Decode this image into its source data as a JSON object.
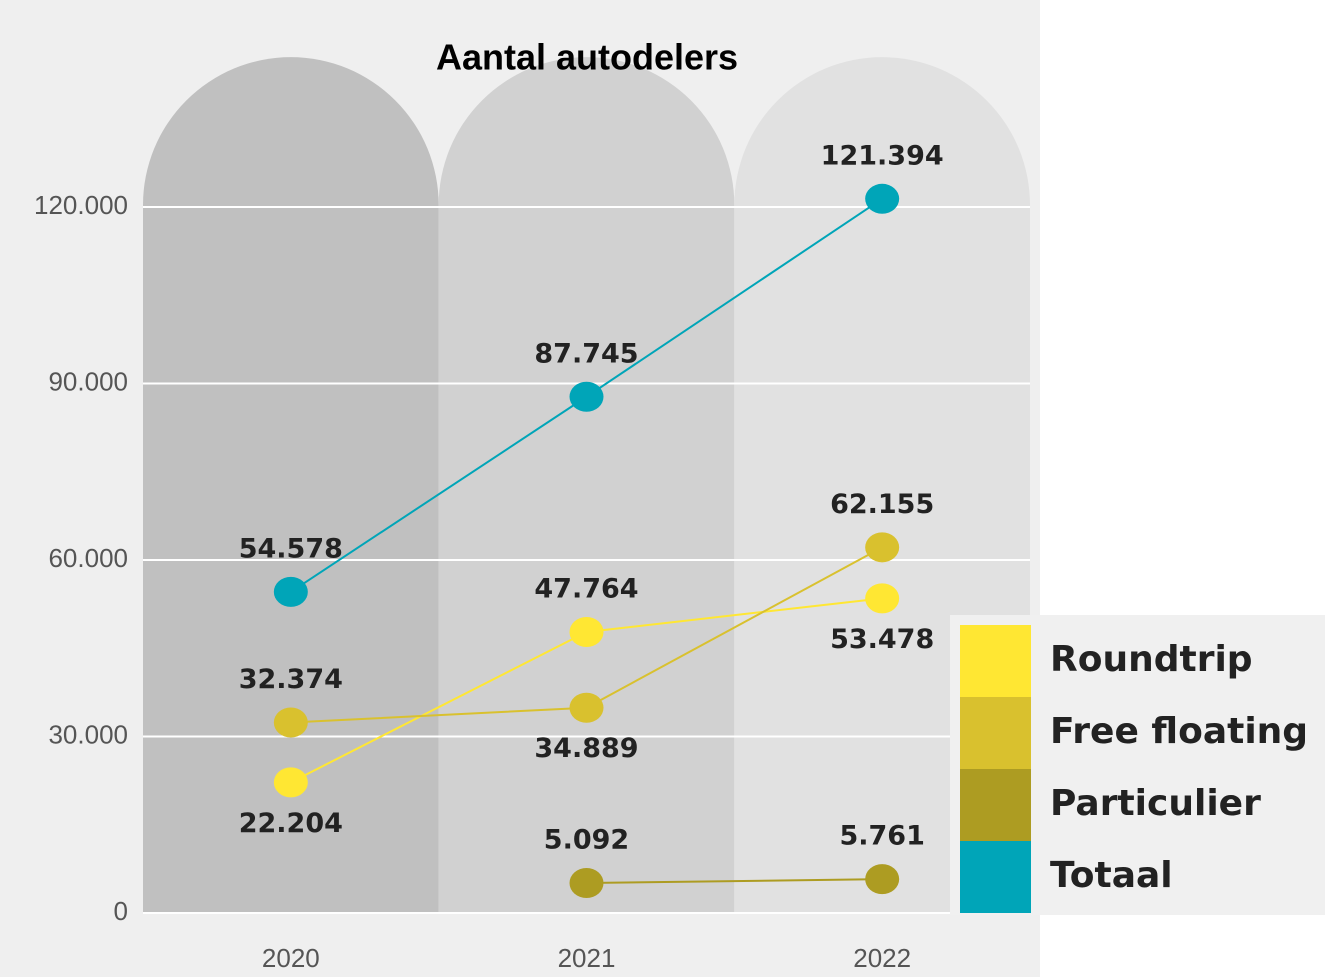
{
  "chart_data": {
    "type": "line",
    "title": "Aantal autodelers",
    "categories": [
      "2020",
      "2021",
      "2022"
    ],
    "series": [
      {
        "name": "Roundtrip",
        "color": "#ffe733",
        "values": [
          22204,
          47764,
          53478
        ],
        "value_labels": [
          "22.204",
          "47.764",
          "53.478"
        ]
      },
      {
        "name": "Free floating",
        "color": "#d9c12e",
        "values": [
          32374,
          34889,
          62155
        ],
        "value_labels": [
          "32.374",
          "34.889",
          "62.155"
        ]
      },
      {
        "name": "Particulier",
        "color": "#ad9c22",
        "values": [
          null,
          5092,
          5761
        ],
        "value_labels": [
          null,
          "5.092",
          "5.761"
        ]
      },
      {
        "name": "Totaal",
        "color": "#00a5b8",
        "values": [
          54578,
          87745,
          121394
        ],
        "value_labels": [
          "54.578",
          "87.745",
          "121.394"
        ]
      }
    ],
    "ylim": [
      0,
      120000
    ],
    "yticks": [
      0,
      {
        "value": 30000,
        "label": "30.000"
      },
      {
        "value": 60000,
        "label": "60.000"
      },
      {
        "value": 90000,
        "label": "90.000"
      },
      {
        "value": 120000,
        "label": "120.000"
      }
    ],
    "grid": true,
    "legend": "lower right"
  }
}
